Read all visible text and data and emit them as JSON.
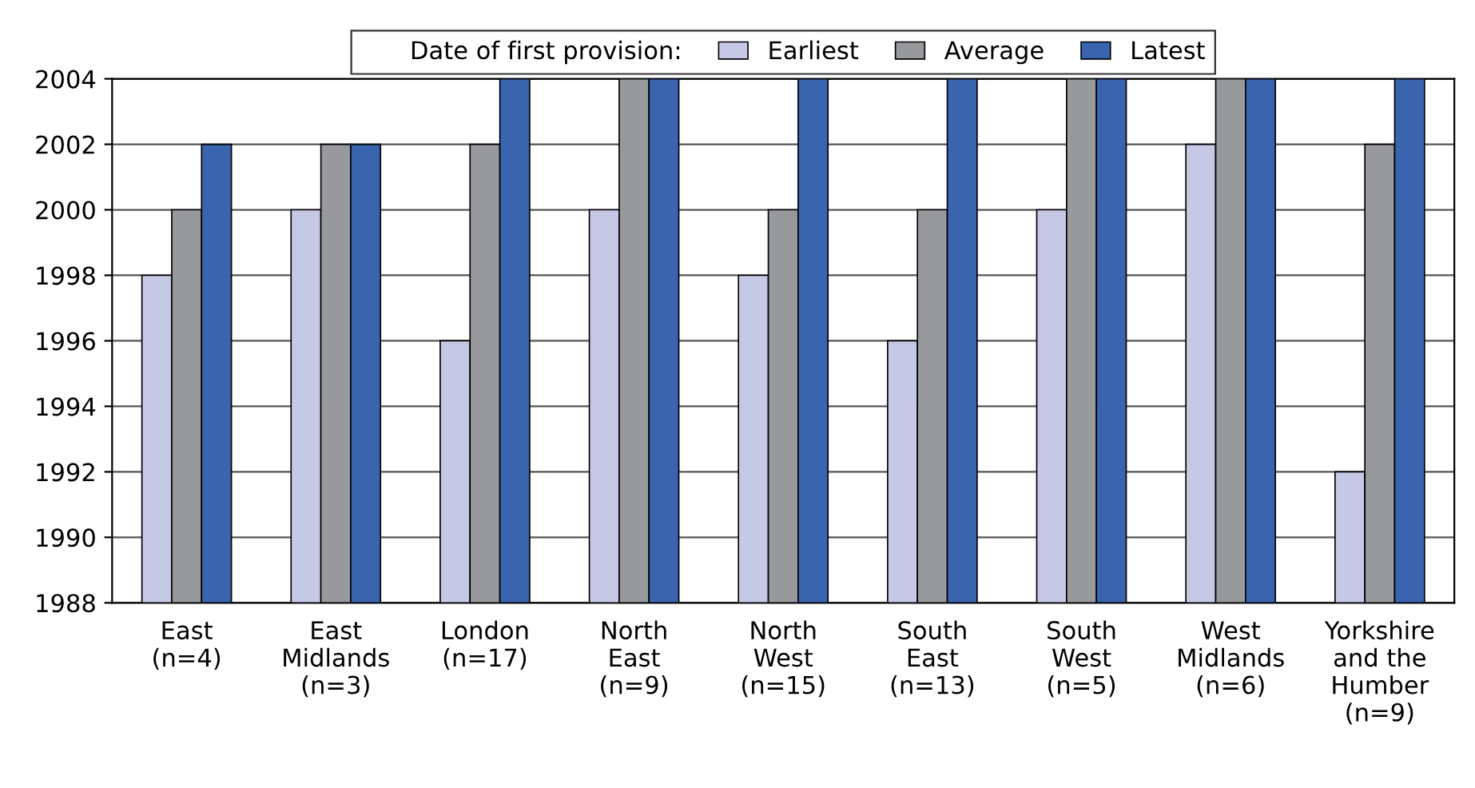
{
  "chart_data": {
    "type": "bar",
    "categories": [
      "East\n(n=4)",
      "East\nMidlands\n(n=3)",
      "London\n(n=17)",
      "North\nEast\n(n=9)",
      "North\nWest\n(n=15)",
      "South\nEast\n(n=13)",
      "South\nWest\n(n=5)",
      "West\nMidlands\n(n=6)",
      "Yorkshire\nand the\nHumber\n(n=9)"
    ],
    "legend_title": "Date of first provision:",
    "series": [
      {
        "name": "Earliest",
        "color": "#c5c9e6",
        "values": [
          1998,
          2000,
          1996,
          2000,
          1998,
          1996,
          2000,
          2002,
          1992
        ]
      },
      {
        "name": "Average",
        "color": "#98999d",
        "values": [
          2000,
          2002,
          2002,
          2004,
          2000,
          2000,
          2004,
          2004,
          2002
        ]
      },
      {
        "name": "Latest",
        "color": "#3a64ae",
        "values": [
          2002,
          2002,
          2004,
          2004,
          2004,
          2004,
          2004,
          2004,
          2004
        ]
      }
    ],
    "ylim": [
      1988,
      2004
    ],
    "yticks": [
      1988,
      1990,
      1992,
      1994,
      1996,
      1998,
      2000,
      2002,
      2004
    ],
    "grid": "y",
    "legend": "top"
  }
}
